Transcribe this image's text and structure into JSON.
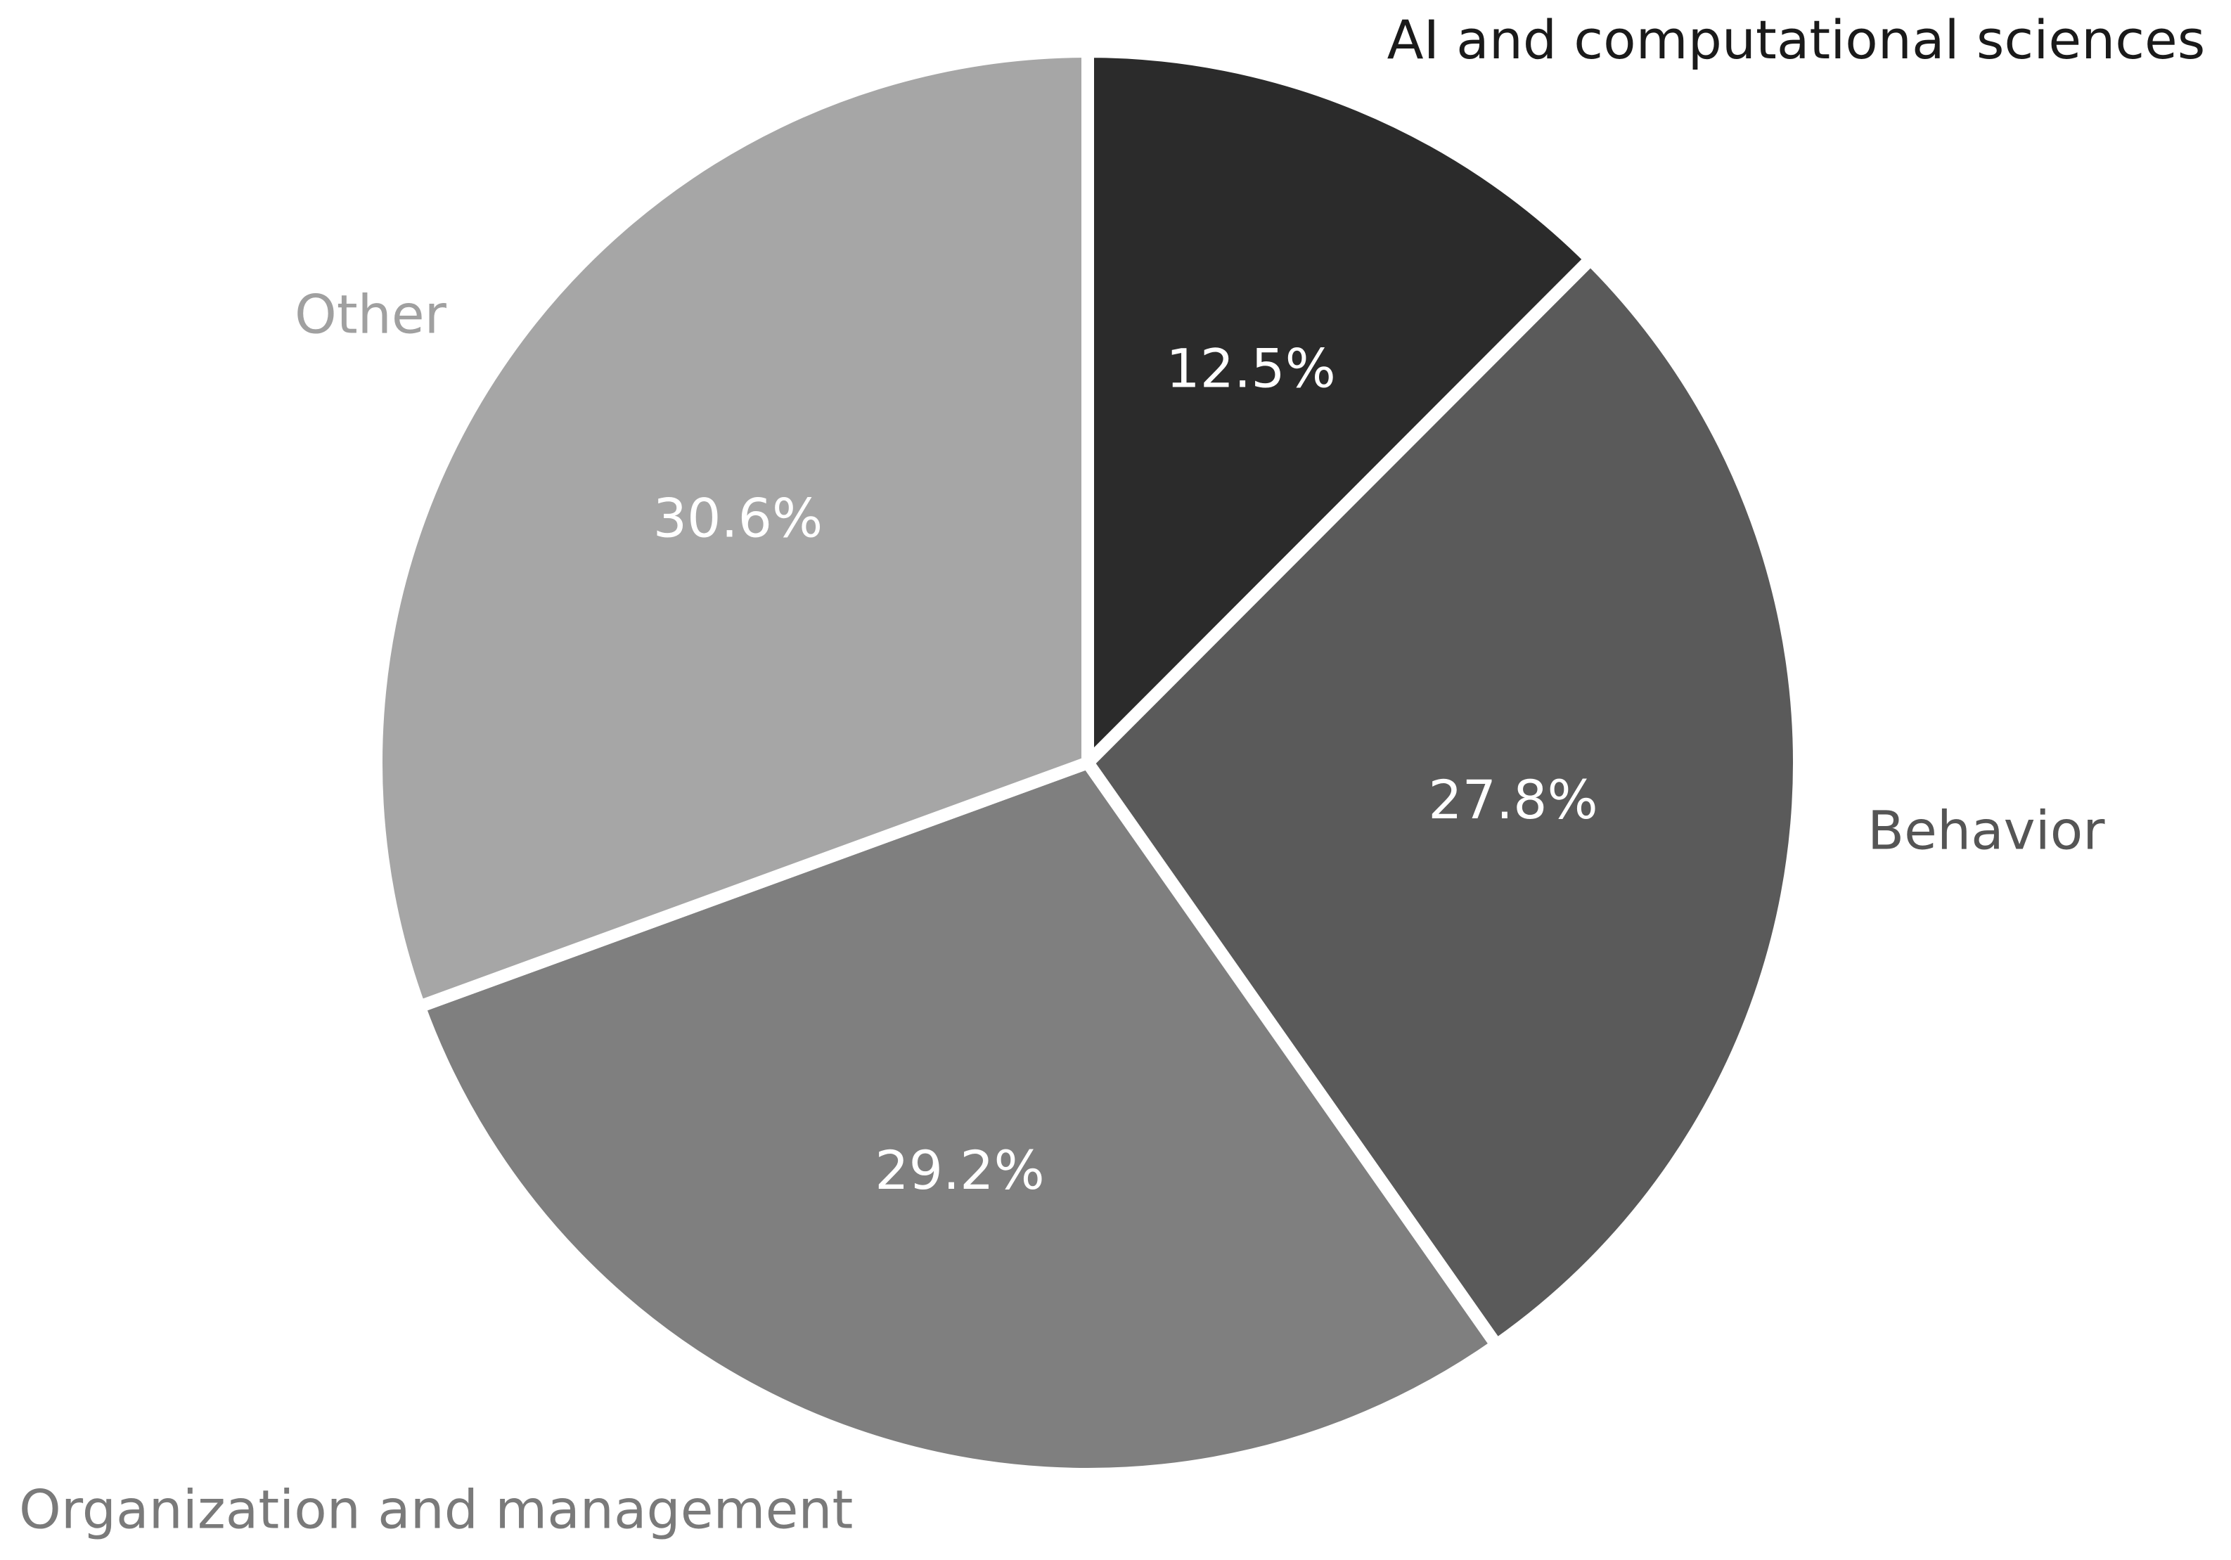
{
  "chart_data": {
    "type": "pie",
    "title": "",
    "start_angle_deg": 90,
    "direction": "clockwise",
    "legend": "none",
    "slices": [
      {
        "label": "AI and computational sciences",
        "value": 12.5,
        "pct_label": "12.5%",
        "color": "#2b2b2b",
        "label_color": "#1a1a1a"
      },
      {
        "label": "Behavior",
        "value": 27.8,
        "pct_label": "27.8%",
        "color": "#5a5a5a",
        "label_color": "#555555"
      },
      {
        "label": "Organization and management",
        "value": 29.2,
        "pct_label": "29.2%",
        "color": "#7f7f7f",
        "label_color": "#7a7a7a"
      },
      {
        "label": "Other",
        "value": 30.6,
        "pct_label": "30.6%",
        "color": "#a6a6a6",
        "label_color": "#a0a0a0"
      }
    ]
  }
}
